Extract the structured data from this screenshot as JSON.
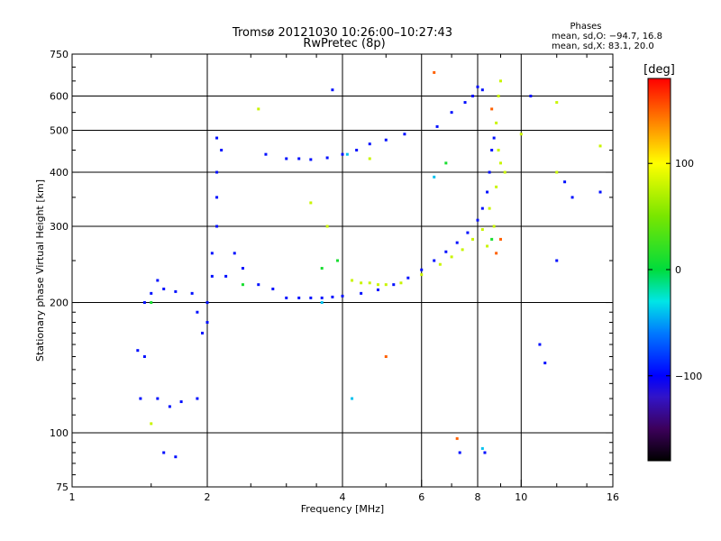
{
  "title_line1": "Tromsø 20121030 10:26:00–10:27:43",
  "title_line2": "RwPretec (8p)",
  "stats": {
    "heading": "Phases",
    "line_o": "mean, sd,O: −94.7, 16.8",
    "line_x": "mean, sd,X:  83.1, 20.0"
  },
  "colorbar": {
    "label": "[deg]",
    "ticks": [
      {
        "v": 100,
        "label": "100"
      },
      {
        "v": 0,
        "label": "0"
      },
      {
        "v": -100,
        "label": "−100"
      }
    ],
    "range": [
      -180,
      180
    ]
  },
  "chart_data": {
    "type": "scatter",
    "xlabel": "Frequency [MHz]",
    "ylabel": "Stationary phase Virtual Height [km]",
    "xscale": "log",
    "yscale": "log",
    "xlim": [
      1,
      16
    ],
    "ylim": [
      75,
      750
    ],
    "xticks": [
      {
        "v": 1,
        "label": "1"
      },
      {
        "v": 2,
        "label": "2"
      },
      {
        "v": 4,
        "label": "4"
      },
      {
        "v": 6,
        "label": "6"
      },
      {
        "v": 8,
        "label": "8"
      },
      {
        "v": 10,
        "label": "10"
      },
      {
        "v": 16,
        "label": "16"
      }
    ],
    "yticks": [
      {
        "v": 75,
        "label": "75"
      },
      {
        "v": 100,
        "label": "100"
      },
      {
        "v": 200,
        "label": "200"
      },
      {
        "v": 300,
        "label": "300"
      },
      {
        "v": 400,
        "label": "400"
      },
      {
        "v": 500,
        "label": "500"
      },
      {
        "v": 600,
        "label": "600"
      },
      {
        "v": 750,
        "label": "750"
      }
    ],
    "grid": true,
    "series": [
      {
        "phase": -95,
        "points": [
          [
            3.0,
            205
          ],
          [
            3.2,
            205
          ],
          [
            3.4,
            205
          ],
          [
            3.6,
            205
          ],
          [
            3.8,
            206
          ],
          [
            4.0,
            207
          ],
          [
            4.4,
            210
          ],
          [
            4.8,
            214
          ],
          [
            5.2,
            220
          ],
          [
            5.6,
            228
          ],
          [
            6.0,
            238
          ],
          [
            6.4,
            250
          ],
          [
            6.8,
            262
          ],
          [
            7.2,
            275
          ],
          [
            7.6,
            290
          ],
          [
            8.0,
            310
          ],
          [
            8.2,
            330
          ],
          [
            8.4,
            360
          ],
          [
            8.5,
            400
          ],
          [
            8.6,
            450
          ],
          [
            8.7,
            480
          ],
          [
            2.0,
            180
          ],
          [
            2.0,
            200
          ],
          [
            2.05,
            230
          ],
          [
            2.05,
            260
          ],
          [
            2.1,
            300
          ],
          [
            2.1,
            350
          ],
          [
            2.1,
            400
          ],
          [
            2.15,
            450
          ],
          [
            2.1,
            480
          ],
          [
            1.95,
            170
          ],
          [
            1.9,
            190
          ],
          [
            1.85,
            210
          ],
          [
            1.5,
            210
          ],
          [
            1.6,
            215
          ],
          [
            1.7,
            212
          ],
          [
            1.45,
            200
          ],
          [
            1.55,
            225
          ],
          [
            1.4,
            155
          ],
          [
            1.45,
            150
          ],
          [
            1.42,
            120
          ],
          [
            1.55,
            120
          ],
          [
            1.65,
            115
          ],
          [
            1.75,
            118
          ],
          [
            1.9,
            120
          ],
          [
            1.6,
            90
          ],
          [
            1.7,
            88
          ],
          [
            2.2,
            230
          ],
          [
            2.4,
            240
          ],
          [
            2.6,
            220
          ],
          [
            2.8,
            215
          ],
          [
            2.3,
            260
          ],
          [
            2.7,
            440
          ],
          [
            3.0,
            430
          ],
          [
            3.2,
            430
          ],
          [
            3.4,
            428
          ],
          [
            3.7,
            432
          ],
          [
            4.0,
            440
          ],
          [
            4.3,
            450
          ],
          [
            4.6,
            465
          ],
          [
            5.0,
            475
          ],
          [
            5.5,
            490
          ],
          [
            6.5,
            510
          ],
          [
            7.0,
            550
          ],
          [
            7.5,
            580
          ],
          [
            7.8,
            600
          ],
          [
            8.0,
            630
          ],
          [
            8.2,
            620
          ],
          [
            3.8,
            620
          ],
          [
            7.3,
            90
          ],
          [
            8.3,
            90
          ],
          [
            10.5,
            600
          ],
          [
            11.0,
            160
          ],
          [
            11.3,
            145
          ],
          [
            12.5,
            380
          ],
          [
            13.0,
            350
          ],
          [
            15.0,
            360
          ],
          [
            12.0,
            250
          ]
        ]
      },
      {
        "phase": 80,
        "points": [
          [
            4.2,
            225
          ],
          [
            4.4,
            222
          ],
          [
            4.6,
            222
          ],
          [
            4.8,
            220
          ],
          [
            5.0,
            220
          ],
          [
            5.4,
            222
          ],
          [
            6.0,
            232
          ],
          [
            6.6,
            245
          ],
          [
            7.0,
            255
          ],
          [
            7.4,
            265
          ],
          [
            7.8,
            280
          ],
          [
            8.2,
            295
          ],
          [
            8.5,
            330
          ],
          [
            8.8,
            370
          ],
          [
            9.0,
            420
          ],
          [
            9.2,
            400
          ],
          [
            8.9,
            450
          ],
          [
            8.8,
            520
          ],
          [
            8.9,
            600
          ],
          [
            9.0,
            650
          ],
          [
            8.7,
            300
          ],
          [
            8.4,
            270
          ],
          [
            2.6,
            560
          ],
          [
            3.7,
            300
          ],
          [
            4.6,
            430
          ],
          [
            1.5,
            105
          ],
          [
            3.4,
            340
          ],
          [
            10.0,
            490
          ],
          [
            12.0,
            400
          ],
          [
            15.0,
            460
          ],
          [
            12.0,
            580
          ]
        ]
      },
      {
        "phase": 10,
        "points": [
          [
            3.9,
            250
          ],
          [
            3.6,
            240
          ],
          [
            2.4,
            220
          ],
          [
            8.6,
            280
          ],
          [
            6.8,
            420
          ],
          [
            1.5,
            200
          ]
        ]
      },
      {
        "phase": 150,
        "points": [
          [
            8.8,
            260
          ],
          [
            9.0,
            280
          ],
          [
            7.2,
            97
          ],
          [
            6.4,
            680
          ],
          [
            5.0,
            150
          ],
          [
            8.6,
            560
          ]
        ]
      },
      {
        "phase": -40,
        "points": [
          [
            4.2,
            120
          ],
          [
            6.4,
            390
          ],
          [
            8.2,
            92
          ],
          [
            4.1,
            440
          ],
          [
            3.6,
            200
          ]
        ]
      }
    ]
  }
}
